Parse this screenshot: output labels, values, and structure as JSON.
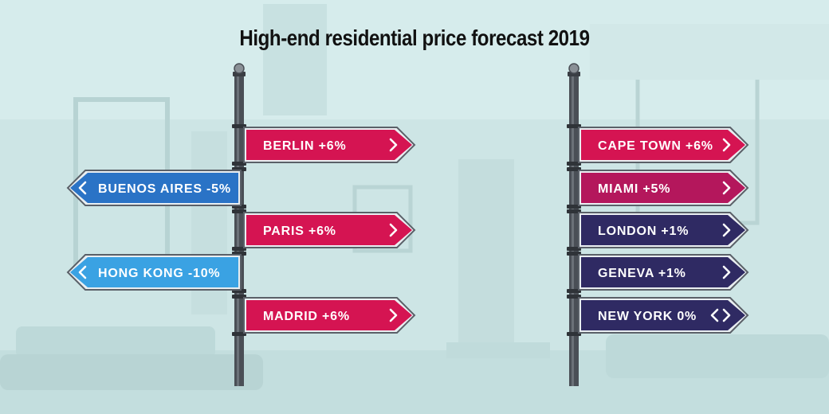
{
  "chart_data": {
    "type": "signpost",
    "title": "High-end residential price forecast 2019",
    "unit": "%",
    "colors": {
      "positive": "#d51452",
      "negative": "#2b7fd0",
      "magenta": "#b4175c",
      "navy": "#2f2a63",
      "text": "#ffffff",
      "pole": "#4a4f56"
    },
    "posts": [
      {
        "name": "left",
        "signs": [
          {
            "label": "BERLIN +6%",
            "city": "BERLIN",
            "value": 6,
            "direction": "right",
            "color": "#d51452"
          },
          {
            "label": "BUENOS AIRES -5%",
            "city": "BUENOS AIRES",
            "value": -5,
            "direction": "left",
            "color": "#2a73c6"
          },
          {
            "label": "PARIS +6%",
            "city": "PARIS",
            "value": 6,
            "direction": "right",
            "color": "#d51452"
          },
          {
            "label": "HONG KONG -10%",
            "city": "HONG KONG",
            "value": -10,
            "direction": "left",
            "color": "#3aa2e3"
          },
          {
            "label": "MADRID +6%",
            "city": "MADRID",
            "value": 6,
            "direction": "right",
            "color": "#d51452"
          }
        ]
      },
      {
        "name": "right",
        "signs": [
          {
            "label": "CAPE TOWN +6%",
            "city": "CAPE TOWN",
            "value": 6,
            "direction": "right",
            "color": "#d51452"
          },
          {
            "label": "MIAMI +5%",
            "city": "MIAMI",
            "value": 5,
            "direction": "right",
            "color": "#b4175c"
          },
          {
            "label": "LONDON +1%",
            "city": "LONDON",
            "value": 1,
            "direction": "right",
            "color": "#2f2a63"
          },
          {
            "label": "GENEVA +1%",
            "city": "GENEVA",
            "value": 1,
            "direction": "right",
            "color": "#2f2a63"
          },
          {
            "label": "NEW YORK 0%",
            "city": "NEW YORK",
            "value": 0,
            "direction": "both",
            "color": "#2f2a63"
          }
        ]
      }
    ]
  }
}
